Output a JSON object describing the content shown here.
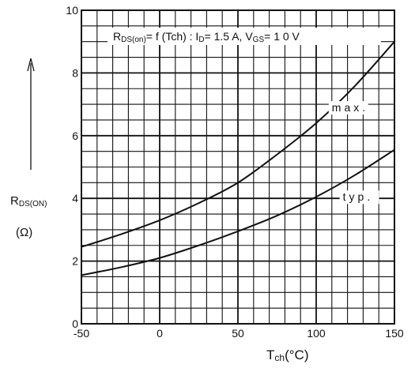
{
  "chart_data": {
    "type": "line",
    "title": "R<sub>DS(on)</sub>= f (Tch) : I<sub>D</sub>= 1.5 A,  V<sub>GS</sub>= 1 0 V",
    "title_parts": {
      "r_main": "R",
      "r_sub": "DS(on)",
      "mid": "= f (Tch) : I",
      "i_sub": "D",
      "mid2": "= 1.5 A,  V",
      "v_sub": "GS",
      "end": "= 1 0 V"
    },
    "xlabel": "Tch(°C)",
    "xlabel_parts": {
      "main": "T",
      "sub": "ch",
      "unit": "(°C)"
    },
    "ylabel_parts": {
      "main": "R",
      "sub": "DS(ON)",
      "unit": "(Ω)"
    },
    "xlim": [
      -50,
      150
    ],
    "ylim": [
      0,
      10
    ],
    "x_ticks": [
      -50,
      0,
      50,
      100,
      150
    ],
    "y_ticks": [
      0,
      2,
      4,
      6,
      8,
      10
    ],
    "grid": true,
    "series": [
      {
        "name": "max.",
        "x": [
          -50,
          -25,
          0,
          25,
          50,
          75,
          100,
          125,
          150
        ],
        "y": [
          2.45,
          2.85,
          3.3,
          3.85,
          4.5,
          5.4,
          6.4,
          7.6,
          9.0
        ]
      },
      {
        "name": "typ.",
        "x": [
          -50,
          -25,
          0,
          25,
          50,
          75,
          100,
          125,
          150
        ],
        "y": [
          1.55,
          1.8,
          2.1,
          2.5,
          2.95,
          3.45,
          4.05,
          4.75,
          5.55
        ]
      }
    ]
  }
}
